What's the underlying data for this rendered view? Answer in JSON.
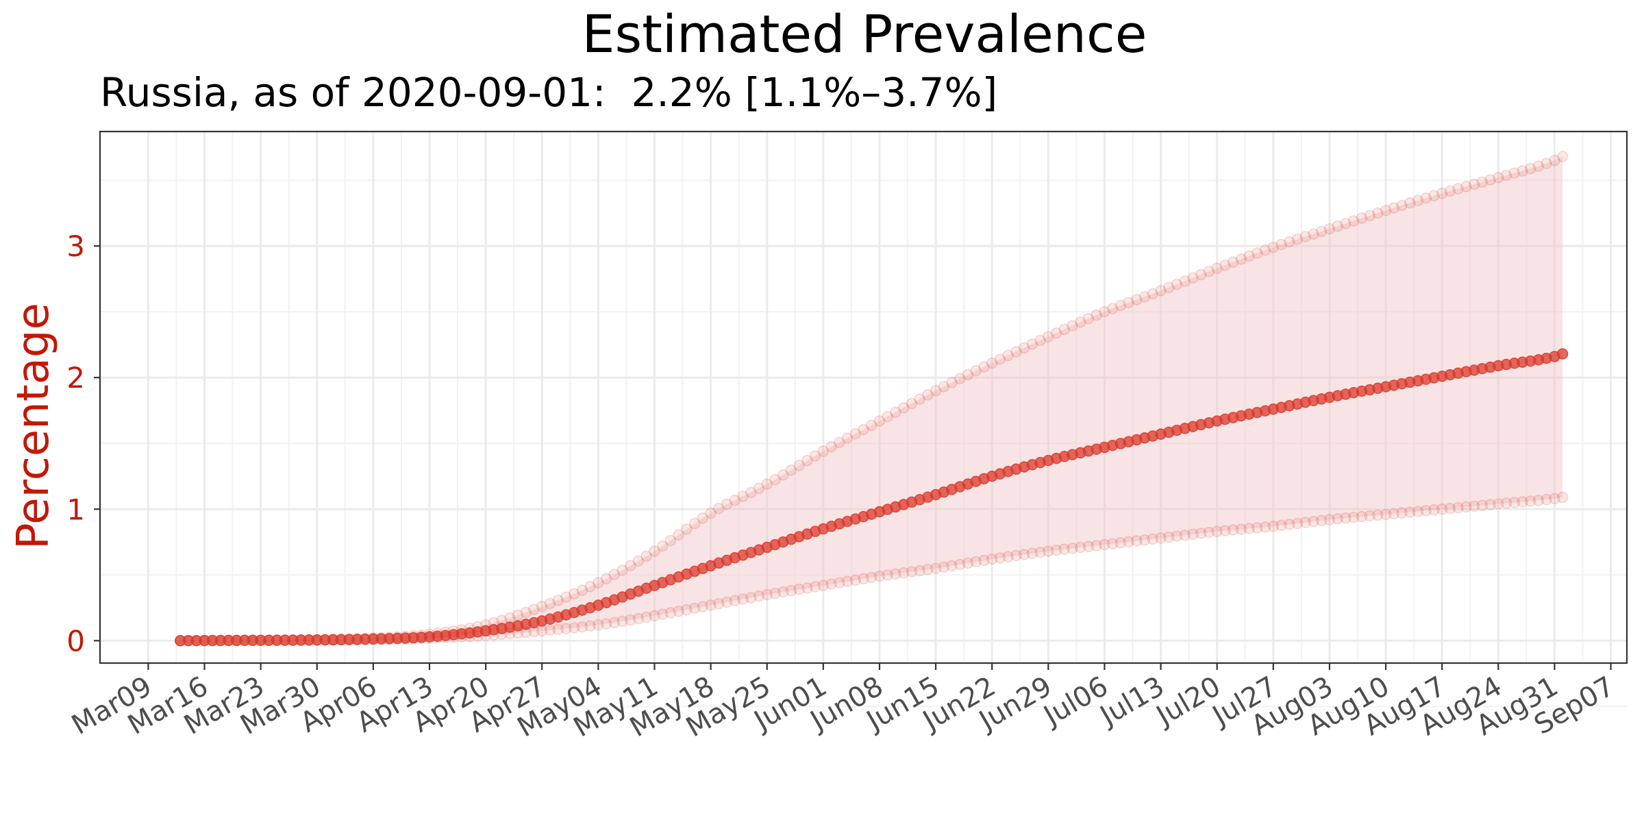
{
  "chart_data": {
    "type": "line",
    "title": "Estimated Prevalence",
    "subtitle": "Russia, as of 2020-09-01:  2.2% [1.1%–3.7%]",
    "xlabel": "",
    "ylabel": "Percentage",
    "start_date": "2020-03-13",
    "end_date": "2020-09-01",
    "xlim": [
      "2020-03-03",
      "2020-09-09"
    ],
    "ylim": [
      -0.17,
      3.87
    ],
    "x_tick_labels": [
      "Mar09",
      "Mar16",
      "Mar23",
      "Mar30",
      "Apr06",
      "Apr13",
      "Apr20",
      "Apr27",
      "May04",
      "May11",
      "May18",
      "May25",
      "Jun01",
      "Jun08",
      "Jun15",
      "Jun22",
      "Jun29",
      "Jul06",
      "Jul13",
      "Jul20",
      "Jul27",
      "Aug03",
      "Aug10",
      "Aug17",
      "Aug24",
      "Aug31",
      "Sep07"
    ],
    "y_ticks": [
      0,
      1,
      2,
      3
    ],
    "grid": true,
    "colors": {
      "point": "#d93a2b",
      "band": "#f2c4c6",
      "ylabel": "#c21807",
      "ytick": "#c21807",
      "xtick": "#4d4d4d"
    },
    "series": [
      {
        "name": "estimate",
        "anchors": [
          [
            "2020-03-13",
            0.0
          ],
          [
            "2020-04-06",
            0.013
          ],
          [
            "2020-04-13",
            0.03
          ],
          [
            "2020-04-20",
            0.075
          ],
          [
            "2020-04-27",
            0.15
          ],
          [
            "2020-05-04",
            0.27
          ],
          [
            "2020-05-11",
            0.42
          ],
          [
            "2020-05-18",
            0.57
          ],
          [
            "2020-05-25",
            0.71
          ],
          [
            "2020-06-01",
            0.85
          ],
          [
            "2020-06-08",
            0.98
          ],
          [
            "2020-06-15",
            1.11
          ],
          [
            "2020-06-22",
            1.25
          ],
          [
            "2020-06-29",
            1.37
          ],
          [
            "2020-07-06",
            1.47
          ],
          [
            "2020-07-13",
            1.57
          ],
          [
            "2020-07-20",
            1.67
          ],
          [
            "2020-07-27",
            1.76
          ],
          [
            "2020-08-03",
            1.85
          ],
          [
            "2020-08-10",
            1.93
          ],
          [
            "2020-08-17",
            2.01
          ],
          [
            "2020-08-24",
            2.09
          ],
          [
            "2020-08-31",
            2.16
          ],
          [
            "2020-09-01",
            2.18
          ]
        ]
      },
      {
        "name": "upper",
        "anchors": [
          [
            "2020-03-13",
            0.0
          ],
          [
            "2020-04-06",
            0.02
          ],
          [
            "2020-04-13",
            0.05
          ],
          [
            "2020-04-20",
            0.12
          ],
          [
            "2020-04-27",
            0.26
          ],
          [
            "2020-05-04",
            0.44
          ],
          [
            "2020-05-11",
            0.68
          ],
          [
            "2020-05-18",
            0.97
          ],
          [
            "2020-05-25",
            1.19
          ],
          [
            "2020-06-01",
            1.44
          ],
          [
            "2020-06-08",
            1.67
          ],
          [
            "2020-06-15",
            1.9
          ],
          [
            "2020-06-22",
            2.11
          ],
          [
            "2020-06-29",
            2.31
          ],
          [
            "2020-07-06",
            2.5
          ],
          [
            "2020-07-13",
            2.66
          ],
          [
            "2020-07-20",
            2.83
          ],
          [
            "2020-07-27",
            2.99
          ],
          [
            "2020-08-03",
            3.13
          ],
          [
            "2020-08-10",
            3.27
          ],
          [
            "2020-08-17",
            3.4
          ],
          [
            "2020-08-24",
            3.52
          ],
          [
            "2020-08-31",
            3.65
          ],
          [
            "2020-09-01",
            3.68
          ]
        ]
      },
      {
        "name": "lower",
        "anchors": [
          [
            "2020-03-13",
            0.0
          ],
          [
            "2020-04-06",
            0.008
          ],
          [
            "2020-04-13",
            0.02
          ],
          [
            "2020-04-20",
            0.04
          ],
          [
            "2020-04-27",
            0.075
          ],
          [
            "2020-05-04",
            0.12
          ],
          [
            "2020-05-11",
            0.19
          ],
          [
            "2020-05-18",
            0.27
          ],
          [
            "2020-05-25",
            0.35
          ],
          [
            "2020-06-01",
            0.42
          ],
          [
            "2020-06-08",
            0.49
          ],
          [
            "2020-06-15",
            0.55
          ],
          [
            "2020-06-22",
            0.62
          ],
          [
            "2020-06-29",
            0.68
          ],
          [
            "2020-07-06",
            0.73
          ],
          [
            "2020-07-13",
            0.78
          ],
          [
            "2020-07-20",
            0.83
          ],
          [
            "2020-07-27",
            0.87
          ],
          [
            "2020-08-03",
            0.92
          ],
          [
            "2020-08-10",
            0.96
          ],
          [
            "2020-08-17",
            1.0
          ],
          [
            "2020-08-24",
            1.04
          ],
          [
            "2020-08-31",
            1.08
          ],
          [
            "2020-09-01",
            1.09
          ]
        ]
      }
    ]
  }
}
